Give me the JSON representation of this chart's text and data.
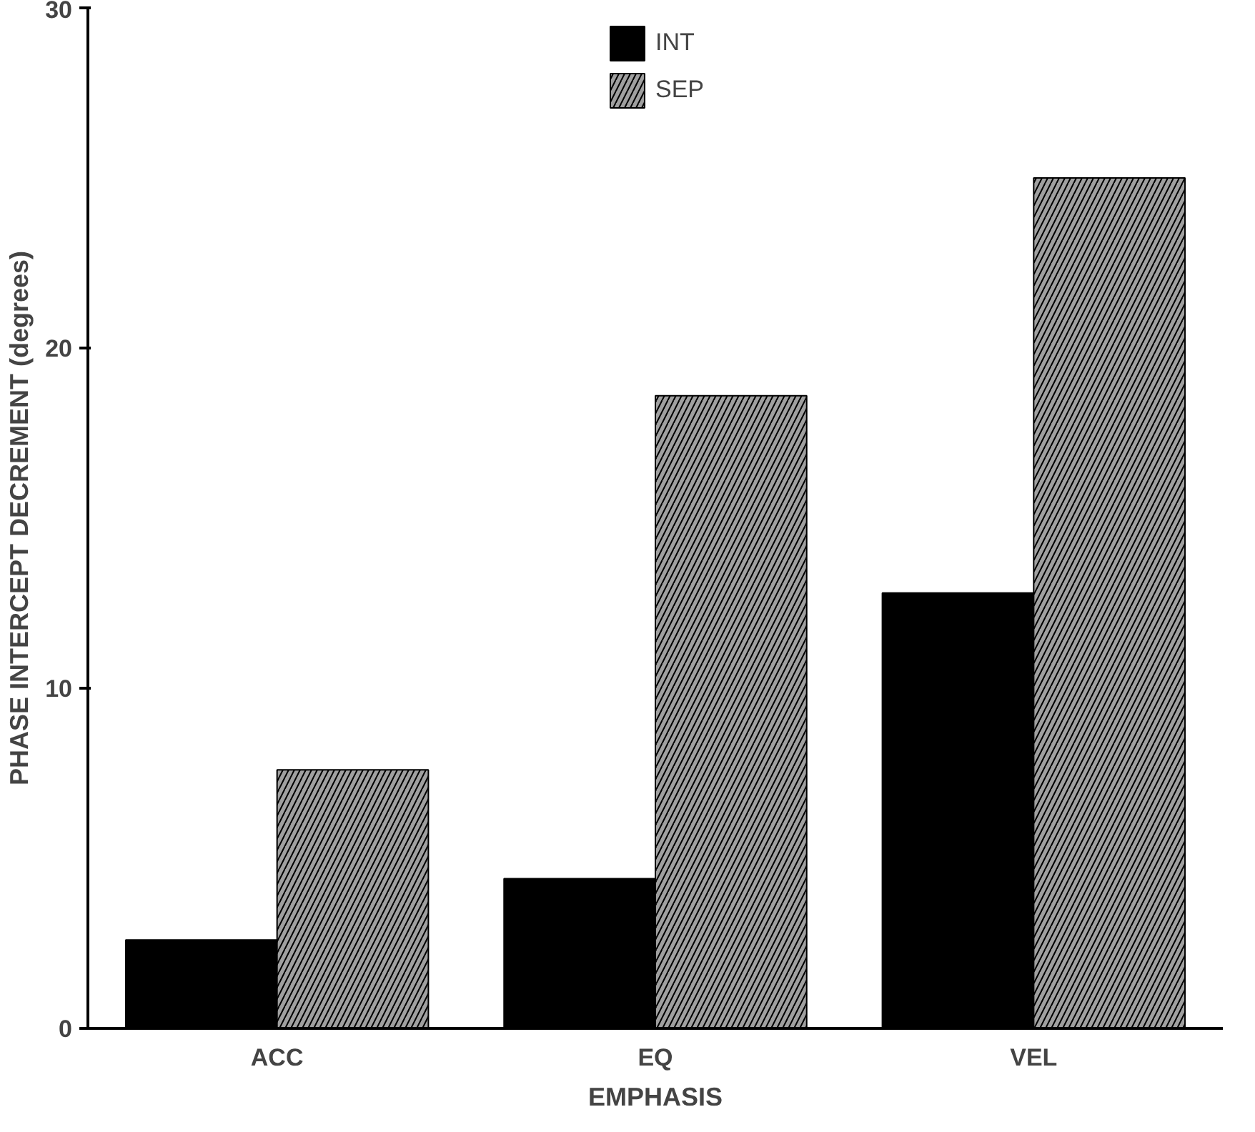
{
  "chart_data": {
    "type": "bar",
    "xlabel": "EMPHASIS",
    "ylabel": "PHASE INTERCEPT DECREMENT (degrees)",
    "categories": [
      "ACC",
      "EQ",
      "VEL"
    ],
    "series": [
      {
        "name": "INT",
        "color": "#000000",
        "values": [
          2.6,
          4.4,
          12.8
        ]
      },
      {
        "name": "SEP",
        "color": "#a0a0a0",
        "values": [
          7.6,
          18.6,
          25.0
        ]
      }
    ],
    "ylim": [
      0,
      30
    ],
    "yticks": [
      0,
      10,
      20,
      30
    ],
    "grid": false,
    "legend": "top"
  }
}
